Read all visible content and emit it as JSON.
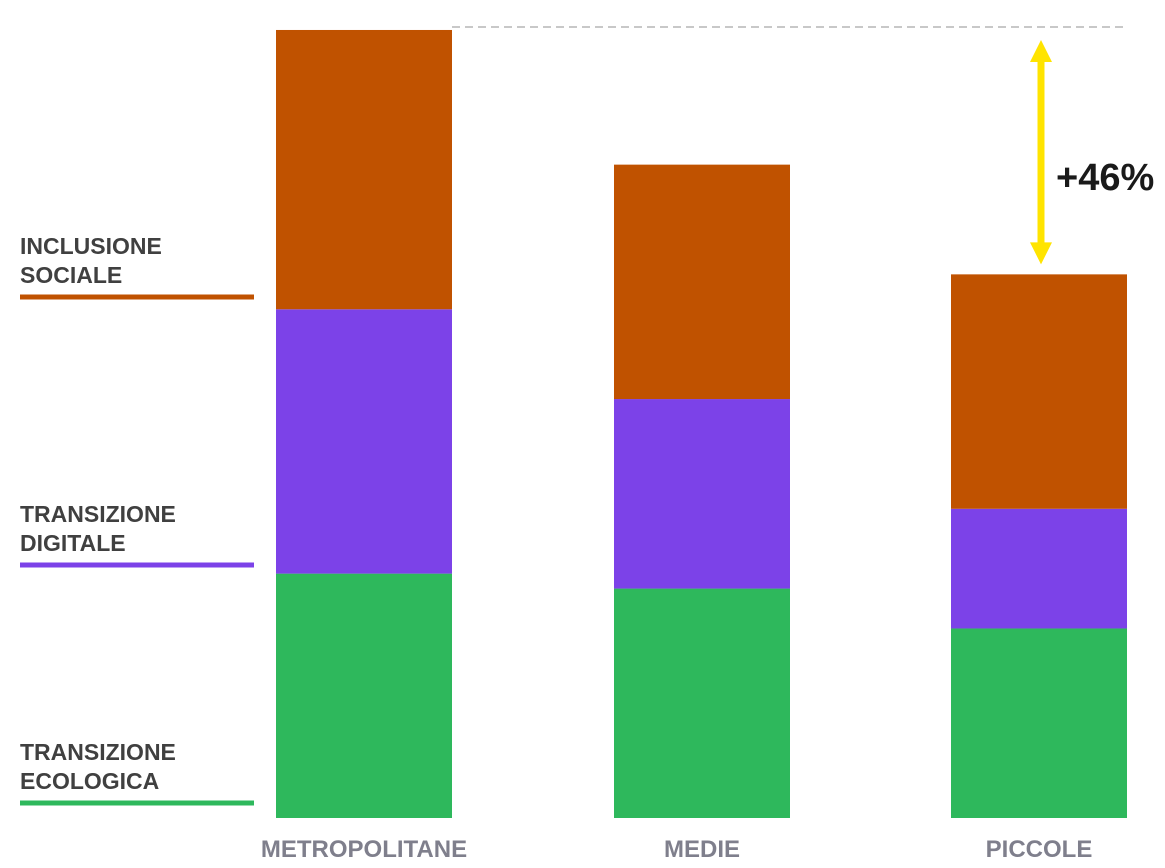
{
  "chart_data": {
    "type": "bar",
    "stacked": true,
    "categories": [
      "METROPOLITANE",
      "MEDIE",
      "PICCOLE"
    ],
    "series": [
      {
        "name": "TRANSIZIONE ECOLOGICA",
        "name_lines": [
          "TRANSIZIONE",
          "ECOLOGICA"
        ],
        "color": "#2eb85c",
        "values": [
          49,
          46,
          38
        ]
      },
      {
        "name": "TRANSIZIONE DIGITALE",
        "name_lines": [
          "TRANSIZIONE",
          "DIGITALE"
        ],
        "color": "#7c42e8",
        "values": [
          53,
          38,
          24
        ]
      },
      {
        "name": "INCLUSIONE SOCIALE",
        "name_lines": [
          "INCLUSIONE",
          "SOCIALE"
        ],
        "color": "#c05200",
        "values": [
          56,
          47,
          47
        ]
      }
    ],
    "ylim": [
      0,
      160
    ],
    "grid": false,
    "legend_position": "left",
    "title": "",
    "xlabel": "",
    "ylabel": "",
    "annotation": {
      "text": "+46%",
      "from_category": "PICCOLE",
      "to_category": "METROPOLITANE",
      "arrow_color": "#ffe400",
      "reference_line_color": "#c8c8c8"
    }
  }
}
